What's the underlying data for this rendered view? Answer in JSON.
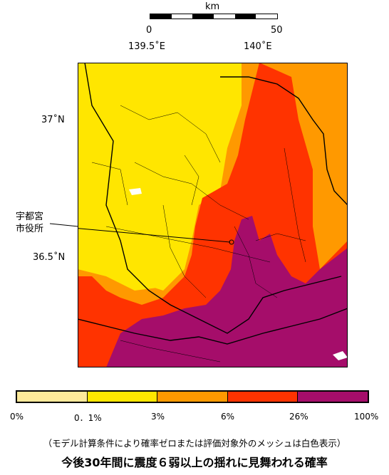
{
  "scale": {
    "unit": "km",
    "zero": "0",
    "max": "50"
  },
  "ticks": {
    "lon_1": "139.5˚E",
    "lon_2": "140˚E",
    "lat_1": "37˚N",
    "lat_2": "36.5˚N"
  },
  "city_label": {
    "line1": "宇都宮",
    "line2": "市役所"
  },
  "legend": {
    "colors": [
      "#fde99a",
      "#ffe600",
      "#ff9900",
      "#ff3300",
      "#a50d6a"
    ],
    "labels": [
      "0%",
      "0．1%",
      "3%",
      "6%",
      "26%",
      "100%"
    ]
  },
  "note": "（モデル計算条件により確率ゼロまたは評価対象外のメッシュは白色表示）",
  "title": "今後30年間に震度６弱以上の揺れに見舞われる確率"
}
